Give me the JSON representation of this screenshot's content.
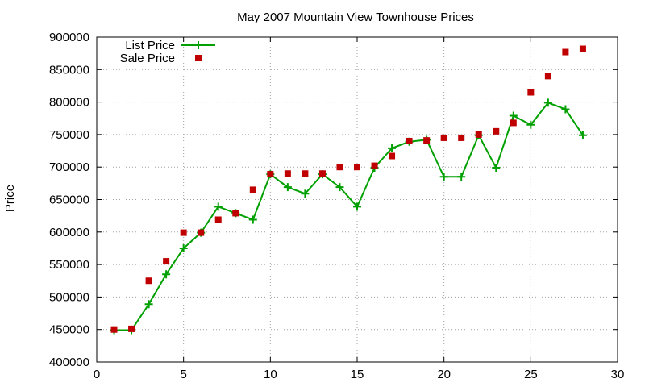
{
  "chart_data": {
    "type": "line",
    "title": "May 2007 Mountain View Townhouse Prices",
    "xlabel": "",
    "ylabel": "Price",
    "xlim": [
      0,
      30
    ],
    "ylim": [
      400000,
      900000
    ],
    "xticks": [
      0,
      5,
      10,
      15,
      20,
      25,
      30
    ],
    "yticks": [
      400000,
      450000,
      500000,
      550000,
      600000,
      650000,
      700000,
      750000,
      800000,
      850000,
      900000
    ],
    "grid": true,
    "legend_position": "top-left",
    "series": [
      {
        "name": "List Price",
        "style": "line-points",
        "marker": "plus",
        "color": "#00a000",
        "x": [
          1,
          2,
          3,
          4,
          5,
          6,
          7,
          8,
          9,
          10,
          11,
          12,
          13,
          14,
          15,
          16,
          17,
          18,
          19,
          20,
          21,
          22,
          23,
          24,
          25,
          26,
          27,
          28
        ],
        "values": [
          449000,
          449000,
          489000,
          535000,
          575000,
          599000,
          639000,
          629000,
          619000,
          689000,
          669000,
          659000,
          689000,
          669000,
          639000,
          699000,
          729000,
          739000,
          742000,
          685000,
          685000,
          749000,
          699000,
          779000,
          765000,
          799000,
          789000,
          749000
        ]
      },
      {
        "name": "Sale Price",
        "style": "points",
        "marker": "square",
        "color": "#c00000",
        "x": [
          1,
          2,
          3,
          4,
          5,
          6,
          7,
          8,
          9,
          10,
          11,
          12,
          13,
          14,
          15,
          16,
          17,
          18,
          19,
          20,
          21,
          22,
          23,
          24,
          25,
          26,
          27,
          28
        ],
        "values": [
          450000,
          451000,
          525000,
          555000,
          599000,
          599000,
          619000,
          629000,
          665000,
          689000,
          690000,
          690000,
          690000,
          700000,
          700000,
          702000,
          717000,
          740000,
          741000,
          745000,
          745000,
          750000,
          755000,
          768000,
          815000,
          840000,
          877000,
          882000
        ]
      }
    ]
  }
}
